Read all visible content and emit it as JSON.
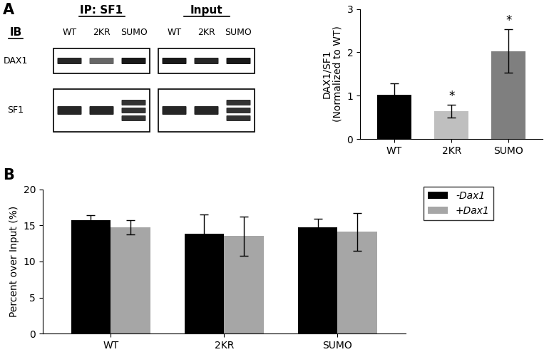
{
  "panels": [
    "A",
    "B"
  ],
  "blot": {
    "groups": [
      {
        "title": "IP: SF1",
        "lanes": [
          "WT",
          "2KR",
          "SUMO"
        ]
      },
      {
        "title": "Input",
        "lanes": [
          "WT",
          "2KR",
          "SUMO"
        ]
      }
    ],
    "row_header": "IB",
    "rows": [
      "DAX1",
      "SF1"
    ]
  },
  "chart_data": [
    {
      "type": "bar",
      "categories": [
        "WT",
        "2KR",
        "SUMO"
      ],
      "values": [
        1.03,
        0.65,
        2.03
      ],
      "errors": [
        0.25,
        0.15,
        0.5
      ],
      "colors": [
        "#000000",
        "#bfbfbf",
        "#7f7f7f"
      ],
      "significance": [
        null,
        "*",
        "*"
      ],
      "y_label": "DAX1/SF1\n(Normalized to WT)",
      "ylim": [
        0,
        3
      ],
      "yticks": [
        0,
        1,
        2,
        3
      ]
    },
    {
      "type": "bar",
      "categories": [
        "WT",
        "2KR",
        "SUMO"
      ],
      "series": [
        {
          "name": "-Dax1",
          "color": "#000000",
          "values": [
            15.7,
            13.8,
            14.7
          ],
          "errors": [
            0.7,
            2.7,
            1.2
          ]
        },
        {
          "name": "+Dax1",
          "color": "#a6a6a6",
          "values": [
            14.7,
            13.5,
            14.1
          ],
          "errors": [
            1.0,
            2.7,
            2.6
          ]
        }
      ],
      "y_label": "Percent over Input (%)",
      "ylim": [
        0,
        20
      ],
      "yticks": [
        0,
        5,
        10,
        15,
        20
      ],
      "legend": "upper right"
    }
  ]
}
